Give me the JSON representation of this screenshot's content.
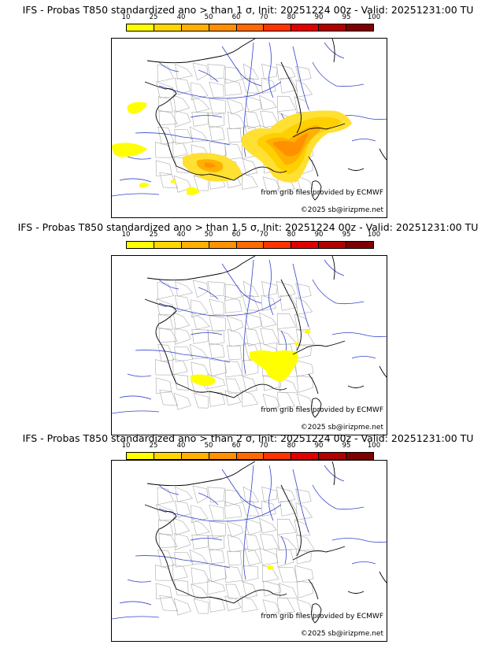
{
  "panels": [
    {
      "title": "IFS - Probas T850  standardized ano > than 1 σ, Init: 20251224 00z - Valid: 20251231:00 TU",
      "credit_source": "from grib files provided by ECMWF",
      "credit_copy": "©2025 sb@irizpme.net"
    },
    {
      "title": "IFS - Probas T850  standardized ano > than 1.5 σ, Init: 20251224 00z - Valid: 20251231:00 TU",
      "credit_source": "from grib files provided by ECMWF",
      "credit_copy": "©2025 sb@irizpme.net"
    },
    {
      "title": "IFS - Probas T850  standardized ano > than 2 σ, Init: 20251224 00z - Valid: 20251231:00 TU",
      "credit_source": "from grib files provided by ECMWF",
      "credit_copy": "©2025 sb@irizpme.net"
    }
  ],
  "colorbar": {
    "ticks": [
      "10",
      "25",
      "40",
      "50",
      "60",
      "70",
      "80",
      "90",
      "95",
      "100"
    ],
    "colors": [
      "#ffff00",
      "#ffd700",
      "#ffb000",
      "#ff9000",
      "#ff6a00",
      "#ff3300",
      "#e00000",
      "#b00000",
      "#800000"
    ]
  },
  "colors": {
    "border": "#000000",
    "rivers": "#3344cc",
    "departments": "#aaaaaa"
  }
}
